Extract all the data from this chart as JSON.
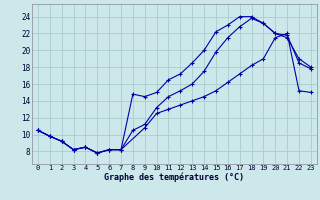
{
  "title": "Graphe des températures (°C)",
  "bg_color": "#cce8ea",
  "grid_color": "#aacccc",
  "line_color": "#0000aa",
  "xlim": [
    -0.5,
    23.5
  ],
  "ylim": [
    6.5,
    25.5
  ],
  "xticks": [
    0,
    1,
    2,
    3,
    4,
    5,
    6,
    7,
    8,
    9,
    10,
    11,
    12,
    13,
    14,
    15,
    16,
    17,
    18,
    19,
    20,
    21,
    22,
    23
  ],
  "yticks": [
    8,
    10,
    12,
    14,
    16,
    18,
    20,
    22,
    24
  ],
  "line_top_x": [
    0,
    1,
    2,
    3,
    4,
    5,
    6,
    7,
    8,
    9,
    10,
    11,
    12,
    13,
    14,
    15,
    16,
    17,
    18,
    19,
    20,
    21,
    22,
    23
  ],
  "line_top_y": [
    10.5,
    9.8,
    9.2,
    8.2,
    8.5,
    7.8,
    8.2,
    8.2,
    14.8,
    14.5,
    15.0,
    16.5,
    17.2,
    18.5,
    20.0,
    22.2,
    23.0,
    24.0,
    24.0,
    23.2,
    22.0,
    21.5,
    19.0,
    18.0
  ],
  "line_mid_x": [
    0,
    1,
    2,
    3,
    4,
    5,
    6,
    7,
    8,
    9,
    10,
    11,
    12,
    13,
    14,
    15,
    16,
    17,
    18,
    19,
    20,
    21,
    22,
    23
  ],
  "line_mid_y": [
    10.5,
    9.8,
    9.2,
    8.2,
    8.5,
    7.8,
    8.2,
    8.2,
    10.5,
    11.2,
    13.2,
    14.5,
    15.2,
    16.0,
    17.5,
    19.8,
    21.5,
    22.8,
    23.8,
    23.2,
    22.0,
    21.8,
    18.5,
    17.8
  ],
  "line_bot_x": [
    0,
    1,
    2,
    3,
    4,
    5,
    6,
    7,
    9,
    10,
    11,
    12,
    13,
    14,
    15,
    16,
    17,
    18,
    19,
    20,
    21,
    22,
    23
  ],
  "line_bot_y": [
    10.5,
    9.8,
    9.2,
    8.2,
    8.5,
    7.8,
    8.2,
    8.2,
    10.8,
    12.5,
    13.0,
    13.5,
    14.0,
    14.5,
    15.2,
    16.2,
    17.2,
    18.2,
    19.0,
    21.5,
    22.0,
    15.2,
    15.0
  ]
}
